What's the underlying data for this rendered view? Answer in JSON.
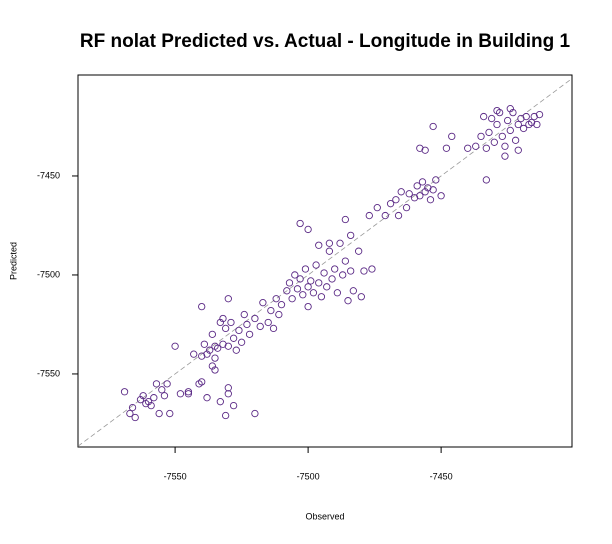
{
  "chart_data": {
    "type": "scatter",
    "title": "RF nolat Predicted vs. Actual - Longitude in Building 1",
    "x_label": "Observed",
    "y_label": "Predicted",
    "color": "#5b2a86",
    "identity_line": true,
    "xlim": [
      -7586.5,
      -7400.8
    ],
    "ylim": [
      -7586.9,
      -7399
    ],
    "xticks": [
      -7550,
      -7500,
      -7450
    ],
    "yticks": [
      -7550,
      -7500,
      -7450
    ],
    "x": [
      -7569,
      -7567,
      -7566,
      -7565,
      -7563,
      -7562,
      -7561,
      -7560,
      -7559,
      -7558,
      -7557,
      -7556,
      -7555,
      -7554,
      -7553,
      -7552,
      -7550,
      -7548,
      -7545,
      -7545,
      -7543,
      -7541,
      -7540,
      -7538,
      -7536,
      -7535,
      -7533,
      -7531,
      -7530,
      -7530,
      -7528,
      -7520,
      -7540,
      -7539,
      -7538,
      -7537,
      -7536,
      -7535,
      -7534,
      -7533,
      -7532,
      -7532,
      -7531,
      -7530,
      -7530,
      -7529,
      -7528,
      -7527,
      -7526,
      -7525,
      -7524,
      -7523,
      -7522,
      -7520,
      -7518,
      -7517,
      -7515,
      -7514,
      -7513,
      -7512,
      -7511,
      -7510,
      -7540,
      -7535,
      -7508,
      -7507,
      -7506,
      -7505,
      -7504,
      -7503,
      -7502,
      -7501,
      -7500,
      -7500,
      -7499,
      -7498,
      -7497,
      -7496,
      -7495,
      -7494,
      -7493,
      -7492,
      -7491,
      -7490,
      -7489,
      -7488,
      -7487,
      -7486,
      -7485,
      -7484,
      -7483,
      -7481,
      -7480,
      -7479,
      -7476,
      -7503,
      -7500,
      -7496,
      -7492,
      -7486,
      -7484,
      -7477,
      -7474,
      -7471,
      -7469,
      -7467,
      -7466,
      -7465,
      -7463,
      -7462,
      -7460,
      -7459,
      -7458,
      -7457,
      -7456,
      -7455,
      -7454,
      -7453,
      -7452,
      -7450,
      -7448,
      -7446,
      -7458,
      -7456,
      -7453,
      -7433,
      -7440,
      -7437,
      -7435,
      -7434,
      -7433,
      -7432,
      -7431,
      -7430,
      -7429,
      -7428,
      -7427,
      -7426,
      -7425,
      -7424,
      -7423,
      -7422,
      -7421,
      -7420,
      -7419,
      -7418,
      -7417,
      -7416,
      -7415,
      -7414,
      -7413,
      -7426,
      -7421,
      -7429,
      -7424
    ],
    "values": [
      -7559,
      -7570,
      -7567,
      -7572,
      -7563,
      -7561,
      -7565,
      -7564,
      -7566,
      -7562,
      -7555,
      -7570,
      -7558,
      -7561,
      -7555,
      -7570,
      -7536,
      -7560,
      -7559,
      -7560,
      -7540,
      -7555,
      -7554,
      -7562,
      -7546,
      -7548,
      -7564,
      -7571,
      -7557,
      -7560,
      -7566,
      -7570,
      -7516,
      -7535,
      -7540,
      -7538,
      -7530,
      -7536,
      -7537,
      -7524,
      -7522,
      -7535,
      -7527,
      -7512,
      -7536,
      -7524,
      -7532,
      -7538,
      -7528,
      -7534,
      -7520,
      -7525,
      -7530,
      -7522,
      -7526,
      -7514,
      -7524,
      -7518,
      -7527,
      -7512,
      -7520,
      -7515,
      -7541,
      -7542,
      -7508,
      -7504,
      -7512,
      -7500,
      -7507,
      -7502,
      -7510,
      -7497,
      -7506,
      -7516,
      -7503,
      -7509,
      -7495,
      -7504,
      -7511,
      -7499,
      -7506,
      -7488,
      -7502,
      -7497,
      -7509,
      -7484,
      -7500,
      -7493,
      -7513,
      -7498,
      -7508,
      -7488,
      -7511,
      -7498,
      -7497,
      -7474,
      -7477,
      -7485,
      -7484,
      -7472,
      -7480,
      -7470,
      -7466,
      -7470,
      -7464,
      -7462,
      -7470,
      -7458,
      -7466,
      -7459,
      -7461,
      -7455,
      -7460,
      -7453,
      -7458,
      -7456,
      -7462,
      -7457,
      -7452,
      -7460,
      -7436,
      -7430,
      -7436,
      -7437,
      -7425,
      -7452,
      -7436,
      -7435,
      -7430,
      -7420,
      -7436,
      -7428,
      -7421,
      -7433,
      -7424,
      -7418,
      -7430,
      -7435,
      -7422,
      -7427,
      -7418,
      -7432,
      -7424,
      -7421,
      -7426,
      -7420,
      -7424,
      -7423,
      -7420,
      -7424,
      -7419,
      -7440,
      -7437,
      -7417,
      -7416
    ]
  }
}
